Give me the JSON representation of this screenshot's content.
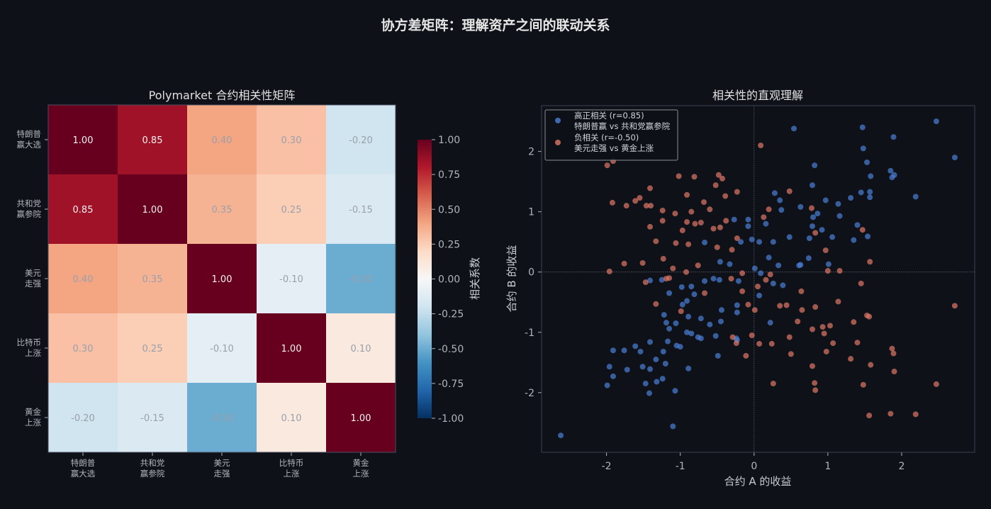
{
  "title": "协方差矩阵：理解资产之间的联动关系",
  "chart_data": [
    {
      "type": "heatmap",
      "title": "Polymarket 合约相关性矩阵",
      "row_labels": [
        [
          "特朗普",
          "赢大选"
        ],
        [
          "共和党",
          "赢参院"
        ],
        [
          "美元",
          "走强"
        ],
        [
          "比特币",
          "上涨"
        ],
        [
          "黄金",
          "上涨"
        ]
      ],
      "col_labels": [
        [
          "特朗普",
          "赢大选"
        ],
        [
          "共和党",
          "赢参院"
        ],
        [
          "美元",
          "走强"
        ],
        [
          "比特币",
          "上涨"
        ],
        [
          "黄金",
          "上涨"
        ]
      ],
      "values": [
        [
          1.0,
          0.85,
          0.4,
          0.3,
          -0.2
        ],
        [
          0.85,
          1.0,
          0.35,
          0.25,
          -0.15
        ],
        [
          0.4,
          0.35,
          1.0,
          -0.1,
          -0.5
        ],
        [
          0.3,
          0.25,
          -0.1,
          1.0,
          0.1
        ],
        [
          -0.2,
          -0.15,
          -0.5,
          0.1,
          1.0
        ]
      ],
      "colormap": "RdBu_r",
      "vlim": [
        -1,
        1
      ],
      "colorbar_label": "相关系数",
      "colorbar_ticks": [
        "1.00",
        "0.75",
        "0.50",
        "0.25",
        "0.00",
        "-0.25",
        "-0.50",
        "-0.75",
        "-1.00"
      ]
    },
    {
      "type": "scatter",
      "title": "相关性的直观理解",
      "xlabel": "合约 A 的收益",
      "ylabel": "合约 B 的收益",
      "xlim": [
        -2.88,
        2.99
      ],
      "ylim": [
        -2.99,
        2.76
      ],
      "xticks": [
        -2,
        -1,
        0,
        1,
        2
      ],
      "yticks": [
        -2,
        -1,
        0,
        1,
        2
      ],
      "legend_position": "top-left",
      "series": [
        {
          "name": "高正相关 (r=0.85)",
          "name_line2": "特朗普赢 vs 共和党赢参院",
          "color": "#4a7fd8",
          "points": [
            [
              -2.62,
              -2.71
            ],
            [
              -1.1,
              -2.56
            ],
            [
              -1.99,
              -1.88
            ],
            [
              -1.91,
              -1.73
            ],
            [
              -1.96,
              -1.57
            ],
            [
              -1.91,
              -1.3
            ],
            [
              -1.76,
              -1.3
            ],
            [
              -1.72,
              -1.62
            ],
            [
              -1.61,
              -1.23
            ],
            [
              -1.54,
              -1.32
            ],
            [
              -1.51,
              -1.57
            ],
            [
              -1.41,
              -1.61
            ],
            [
              -1.47,
              -1.85
            ],
            [
              -1.42,
              -2.01
            ],
            [
              -1.32,
              -1.82
            ],
            [
              -1.24,
              -1.77
            ],
            [
              -1.33,
              -1.45
            ],
            [
              -1.23,
              -1.32
            ],
            [
              -1.2,
              -1.52
            ],
            [
              -1.17,
              -1.15
            ],
            [
              -1.07,
              -1.97
            ],
            [
              -1.05,
              -1.22
            ],
            [
              -1.0,
              -1.24
            ],
            [
              -0.89,
              -1.6
            ],
            [
              -1.06,
              -0.85
            ],
            [
              -1.15,
              -0.94
            ],
            [
              -1.22,
              -0.71
            ],
            [
              -1.19,
              -0.84
            ],
            [
              -1.15,
              -0.35
            ],
            [
              -1.25,
              -0.13
            ],
            [
              -1.41,
              -0.14
            ],
            [
              -1.41,
              -1.16
            ],
            [
              -0.91,
              -1.0
            ],
            [
              -0.85,
              -1.02
            ],
            [
              -0.76,
              -1.08
            ],
            [
              -0.72,
              -1.1
            ],
            [
              -0.72,
              -0.77
            ],
            [
              -0.6,
              -0.87
            ],
            [
              -0.52,
              -1.06
            ],
            [
              -0.49,
              -1.39
            ],
            [
              -0.45,
              -0.82
            ],
            [
              -0.44,
              -0.63
            ],
            [
              -0.24,
              -1.1
            ],
            [
              -0.23,
              -0.67
            ],
            [
              -0.23,
              -0.55
            ],
            [
              -0.89,
              -0.74
            ],
            [
              -0.97,
              -0.54
            ],
            [
              -0.91,
              -0.48
            ],
            [
              -0.81,
              -0.37
            ],
            [
              -0.98,
              -0.25
            ],
            [
              -0.85,
              -0.24
            ],
            [
              -0.67,
              -0.15
            ],
            [
              -0.55,
              -0.11
            ],
            [
              -0.47,
              -0.13
            ],
            [
              -0.33,
              0.13
            ],
            [
              -0.46,
              0.17
            ],
            [
              -0.67,
              0.49
            ],
            [
              -0.27,
              0.87
            ],
            [
              -0.18,
              0.5
            ],
            [
              -0.08,
              0.87
            ],
            [
              -0.08,
              0.76
            ],
            [
              -0.03,
              0.54
            ],
            [
              0.07,
              0.5
            ],
            [
              0.16,
              0.8
            ],
            [
              0.26,
              0.5
            ],
            [
              0.2,
              0.24
            ],
            [
              0.33,
              0.11
            ],
            [
              0.35,
              1.19
            ],
            [
              0.28,
              1.31
            ],
            [
              0.37,
              1.03
            ],
            [
              0.48,
              0.58
            ],
            [
              0.54,
              2.38
            ],
            [
              0.63,
              1.08
            ],
            [
              0.63,
              0.12
            ],
            [
              0.74,
              0.23
            ],
            [
              0.79,
              1.44
            ],
            [
              0.82,
              1.77
            ],
            [
              0.8,
              0.91
            ],
            [
              0.86,
              0.97
            ],
            [
              0.79,
              0.76
            ],
            [
              0.75,
              0.56
            ],
            [
              0.92,
              0.7
            ],
            [
              0.97,
              1.19
            ],
            [
              1.06,
              0.58
            ],
            [
              1.14,
              1.13
            ],
            [
              1.16,
              0.93
            ],
            [
              1.01,
              0.13
            ],
            [
              1.31,
              1.23
            ],
            [
              1.35,
              0.53
            ],
            [
              1.4,
              0.78
            ],
            [
              1.45,
              1.32
            ],
            [
              1.47,
              2.4
            ],
            [
              1.48,
              2.05
            ],
            [
              1.53,
              1.82
            ],
            [
              1.54,
              0.59
            ],
            [
              1.57,
              1.24
            ],
            [
              1.58,
              1.59
            ],
            [
              1.57,
              1.33
            ],
            [
              1.85,
              1.68
            ],
            [
              1.9,
              1.61
            ],
            [
              1.87,
              1.57
            ],
            [
              1.89,
              2.24
            ],
            [
              2.19,
              1.25
            ],
            [
              2.47,
              2.5
            ],
            [
              2.72,
              1.9
            ],
            [
              0.61,
              0.11
            ],
            [
              0.01,
              0.06
            ],
            [
              0.09,
              -0.02
            ],
            [
              0.26,
              -0.19
            ],
            [
              0.39,
              -0.22
            ],
            [
              0.07,
              -0.39
            ],
            [
              0.22,
              -0.84
            ],
            [
              -0.23,
              -1.13
            ],
            [
              -0.21,
              -0.15
            ]
          ]
        },
        {
          "name": "负相关 (r=-0.50)",
          "name_line2": "美元走强 vs 黄金上涨",
          "color": "#e07868",
          "points": [
            [
              -1.99,
              1.77
            ],
            [
              -1.91,
              1.84
            ],
            [
              -1.96,
              0.01
            ],
            [
              -1.92,
              1.15
            ],
            [
              -1.76,
              0.14
            ],
            [
              -1.73,
              1.1
            ],
            [
              -1.61,
              1.18
            ],
            [
              -1.55,
              1.23
            ],
            [
              -1.51,
              0.15
            ],
            [
              -1.46,
              1.1
            ],
            [
              -1.41,
              1.39
            ],
            [
              -1.41,
              0.75
            ],
            [
              -1.4,
              1.1
            ],
            [
              -1.47,
              -0.17
            ],
            [
              -1.33,
              0.51
            ],
            [
              -1.33,
              -0.53
            ],
            [
              -1.24,
              1.02
            ],
            [
              -1.24,
              0.85
            ],
            [
              -1.23,
              0.22
            ],
            [
              -1.19,
              -0.11
            ],
            [
              -1.15,
              -0.1
            ],
            [
              -1.1,
              0.06
            ],
            [
              -1.07,
              0.97
            ],
            [
              -1.06,
              0.48
            ],
            [
              -1.02,
              1.59
            ],
            [
              -0.97,
              0.69
            ],
            [
              -0.99,
              -0.65
            ],
            [
              -0.92,
              0.0
            ],
            [
              -0.91,
              1.28
            ],
            [
              -0.91,
              0.83
            ],
            [
              -0.89,
              0.46
            ],
            [
              -0.85,
              1.0
            ],
            [
              -0.81,
              1.58
            ],
            [
              -0.8,
              0.8
            ],
            [
              -0.72,
              0.82
            ],
            [
              -0.68,
              1.16
            ],
            [
              -0.67,
              -0.35
            ],
            [
              -0.6,
              1.04
            ],
            [
              -0.55,
              0.72
            ],
            [
              -0.52,
              1.44
            ],
            [
              -0.48,
              1.61
            ],
            [
              -0.46,
              0.74
            ],
            [
              -0.43,
              1.55
            ],
            [
              -0.39,
              1.26
            ],
            [
              -0.38,
              0.85
            ],
            [
              -0.31,
              -0.11
            ],
            [
              -0.29,
              -1.08
            ],
            [
              -0.24,
              -1.18
            ],
            [
              -0.23,
              1.33
            ],
            [
              -0.23,
              0.56
            ],
            [
              -0.11,
              -1.39
            ],
            [
              -0.08,
              -0.54
            ],
            [
              -0.03,
              -1.05
            ],
            [
              0.01,
              -0.63
            ],
            [
              0.07,
              -1.19
            ],
            [
              0.09,
              2.1
            ],
            [
              0.13,
              0.91
            ],
            [
              0.2,
              1.04
            ],
            [
              0.24,
              -1.19
            ],
            [
              0.26,
              -1.85
            ],
            [
              0.35,
              -0.56
            ],
            [
              0.44,
              -0.55
            ],
            [
              0.48,
              1.34
            ],
            [
              0.48,
              -1.08
            ],
            [
              0.5,
              -1.36
            ],
            [
              0.59,
              -0.82
            ],
            [
              0.64,
              -0.32
            ],
            [
              0.65,
              -0.63
            ],
            [
              0.78,
              1.06
            ],
            [
              0.79,
              -1.56
            ],
            [
              0.82,
              -1.84
            ],
            [
              0.83,
              -1.96
            ],
            [
              0.79,
              -0.95
            ],
            [
              0.83,
              0.65
            ],
            [
              0.83,
              -0.58
            ],
            [
              0.93,
              -0.91
            ],
            [
              0.95,
              -1.02
            ],
            [
              0.97,
              0.36
            ],
            [
              0.98,
              -1.32
            ],
            [
              1.0,
              0.02
            ],
            [
              1.03,
              -0.89
            ],
            [
              1.07,
              -1.18
            ],
            [
              1.14,
              -0.49
            ],
            [
              1.16,
              0.02
            ],
            [
              1.31,
              -1.44
            ],
            [
              1.35,
              -0.83
            ],
            [
              1.4,
              -1.17
            ],
            [
              1.45,
              -0.19
            ],
            [
              1.47,
              0.7
            ],
            [
              1.48,
              -1.87
            ],
            [
              1.53,
              -0.72
            ],
            [
              1.56,
              -2.38
            ],
            [
              1.56,
              -0.74
            ],
            [
              1.57,
              0.17
            ],
            [
              1.58,
              -1.54
            ],
            [
              1.87,
              -1.27
            ],
            [
              1.89,
              -1.35
            ],
            [
              1.9,
              -1.65
            ],
            [
              1.85,
              -2.35
            ],
            [
              2.19,
              -2.36
            ],
            [
              2.47,
              -1.86
            ],
            [
              2.72,
              -0.56
            ],
            [
              0.22,
              -0.04
            ],
            [
              0.16,
              -0.13
            ],
            [
              0.05,
              -0.24
            ],
            [
              -0.16,
              -0.32
            ],
            [
              -0.76,
              0.11
            ],
            [
              -0.5,
              0.41
            ],
            [
              -0.3,
              0.37
            ],
            [
              -0.16,
              -0.02
            ]
          ]
        }
      ]
    }
  ]
}
